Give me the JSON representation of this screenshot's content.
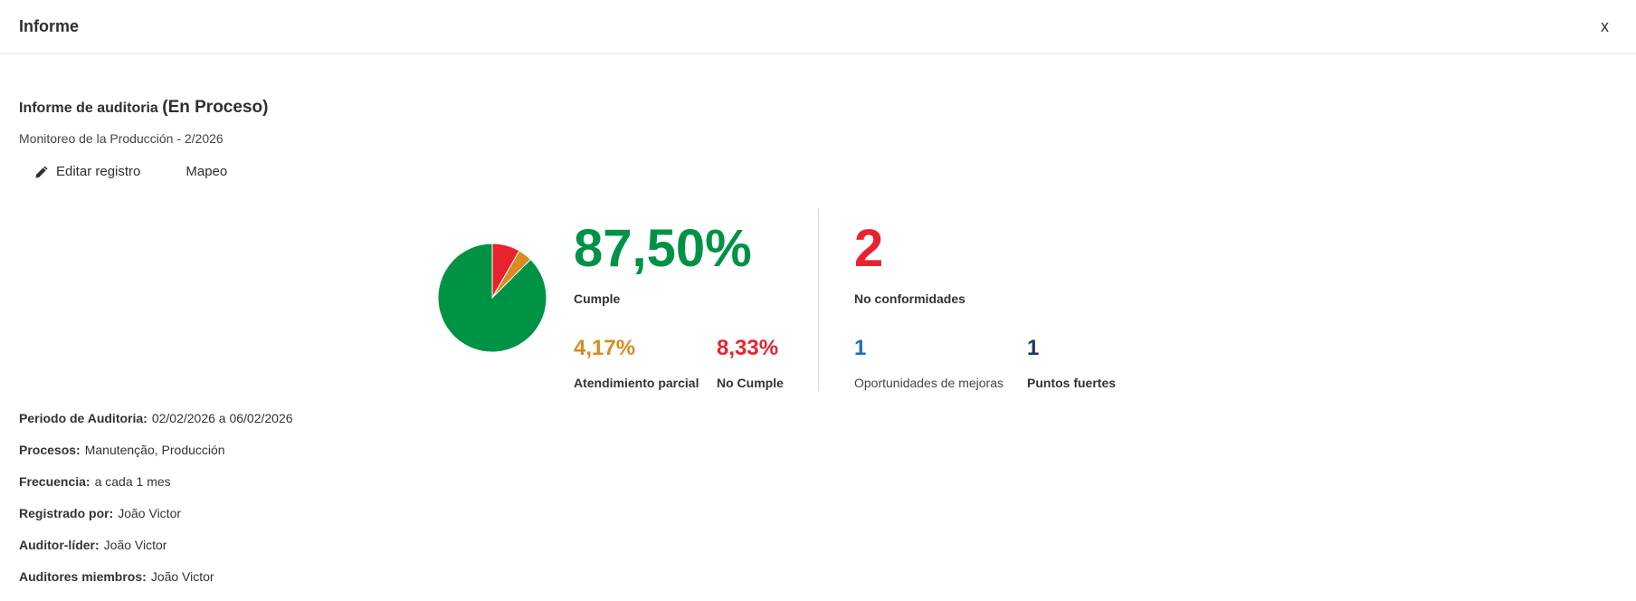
{
  "modal": {
    "title": "Informe",
    "close_label": "x"
  },
  "report": {
    "title": "Informe de auditoria",
    "status": "(En Proceso)",
    "subtitle": "Monitoreo de la Producción - 2/2026"
  },
  "actions": {
    "edit_label": "Editar registro",
    "map_label": "Mapeo"
  },
  "stats": {
    "compliance_pct": "87,50%",
    "compliance_label": "Cumple",
    "partial_pct": "4,17%",
    "partial_label": "Atendimiento parcial",
    "noncompliant_pct": "8,33%",
    "noncompliant_label": "No Cumple",
    "nonconformities_count": "2",
    "nonconformities_label": "No conformidades",
    "improvements_count": "1",
    "improvements_label": "Oportunidades de mejoras",
    "strengths_count": "1",
    "strengths_label": "Puntos fuertes"
  },
  "chart_data": {
    "type": "pie",
    "slices": [
      {
        "label": "Cumple",
        "value": 87.5,
        "color": "#009245"
      },
      {
        "label": "No Cumple",
        "value": 8.33,
        "color": "#e8232f"
      },
      {
        "label": "Atendimiento parcial",
        "value": 4.17,
        "color": "#d98c1f"
      }
    ]
  },
  "colors": {
    "green": "#009245",
    "red": "#e8232f",
    "orange": "#d98c1f",
    "blue": "#1f6fb2",
    "navy": "#1c3a5e"
  },
  "details": [
    {
      "key": "Periodo de Auditoria:",
      "value": "02/02/2026 a 06/02/2026"
    },
    {
      "key": "Procesos:",
      "value": "Manutenção, Producción"
    },
    {
      "key": "Frecuencia:",
      "value": "a cada 1 mes"
    },
    {
      "key": "Registrado por:",
      "value": "João Victor"
    },
    {
      "key": "Auditor-líder:",
      "value": "João Victor"
    },
    {
      "key": "Auditores miembros:",
      "value": "João Victor"
    }
  ]
}
